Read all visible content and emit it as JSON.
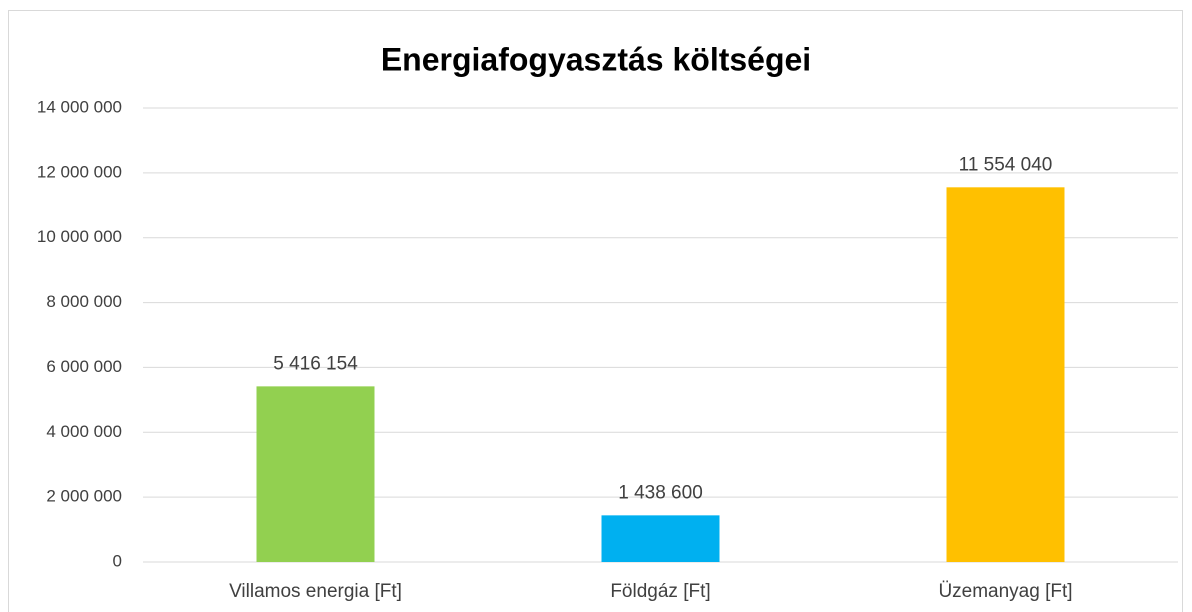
{
  "chart_data": {
    "type": "bar",
    "title": "Energiafogyasztás költségei",
    "categories": [
      "Villamos energia [Ft]",
      "Földgáz [Ft]",
      "Üzemanyag [Ft]"
    ],
    "values": [
      5416154,
      1438600,
      11554040
    ],
    "value_labels": [
      "5 416 154",
      "1 438 600",
      "11 554 040"
    ],
    "colors": [
      "#92d050",
      "#00b0f0",
      "#ffc000"
    ],
    "ylim": [
      0,
      14000000
    ],
    "yticks": [
      0,
      {
        "value": 2000000,
        "label": "2 000 000"
      },
      {
        "value": 4000000,
        "label": "4 000 000"
      },
      {
        "value": 6000000,
        "label": "6 000 000"
      },
      {
        "value": 8000000,
        "label": "8 000 000"
      },
      {
        "value": 10000000,
        "label": "10 000 000"
      },
      {
        "value": 12000000,
        "label": "12 000 000"
      },
      {
        "value": 14000000,
        "label": "14 000 000"
      }
    ],
    "grid": true
  }
}
